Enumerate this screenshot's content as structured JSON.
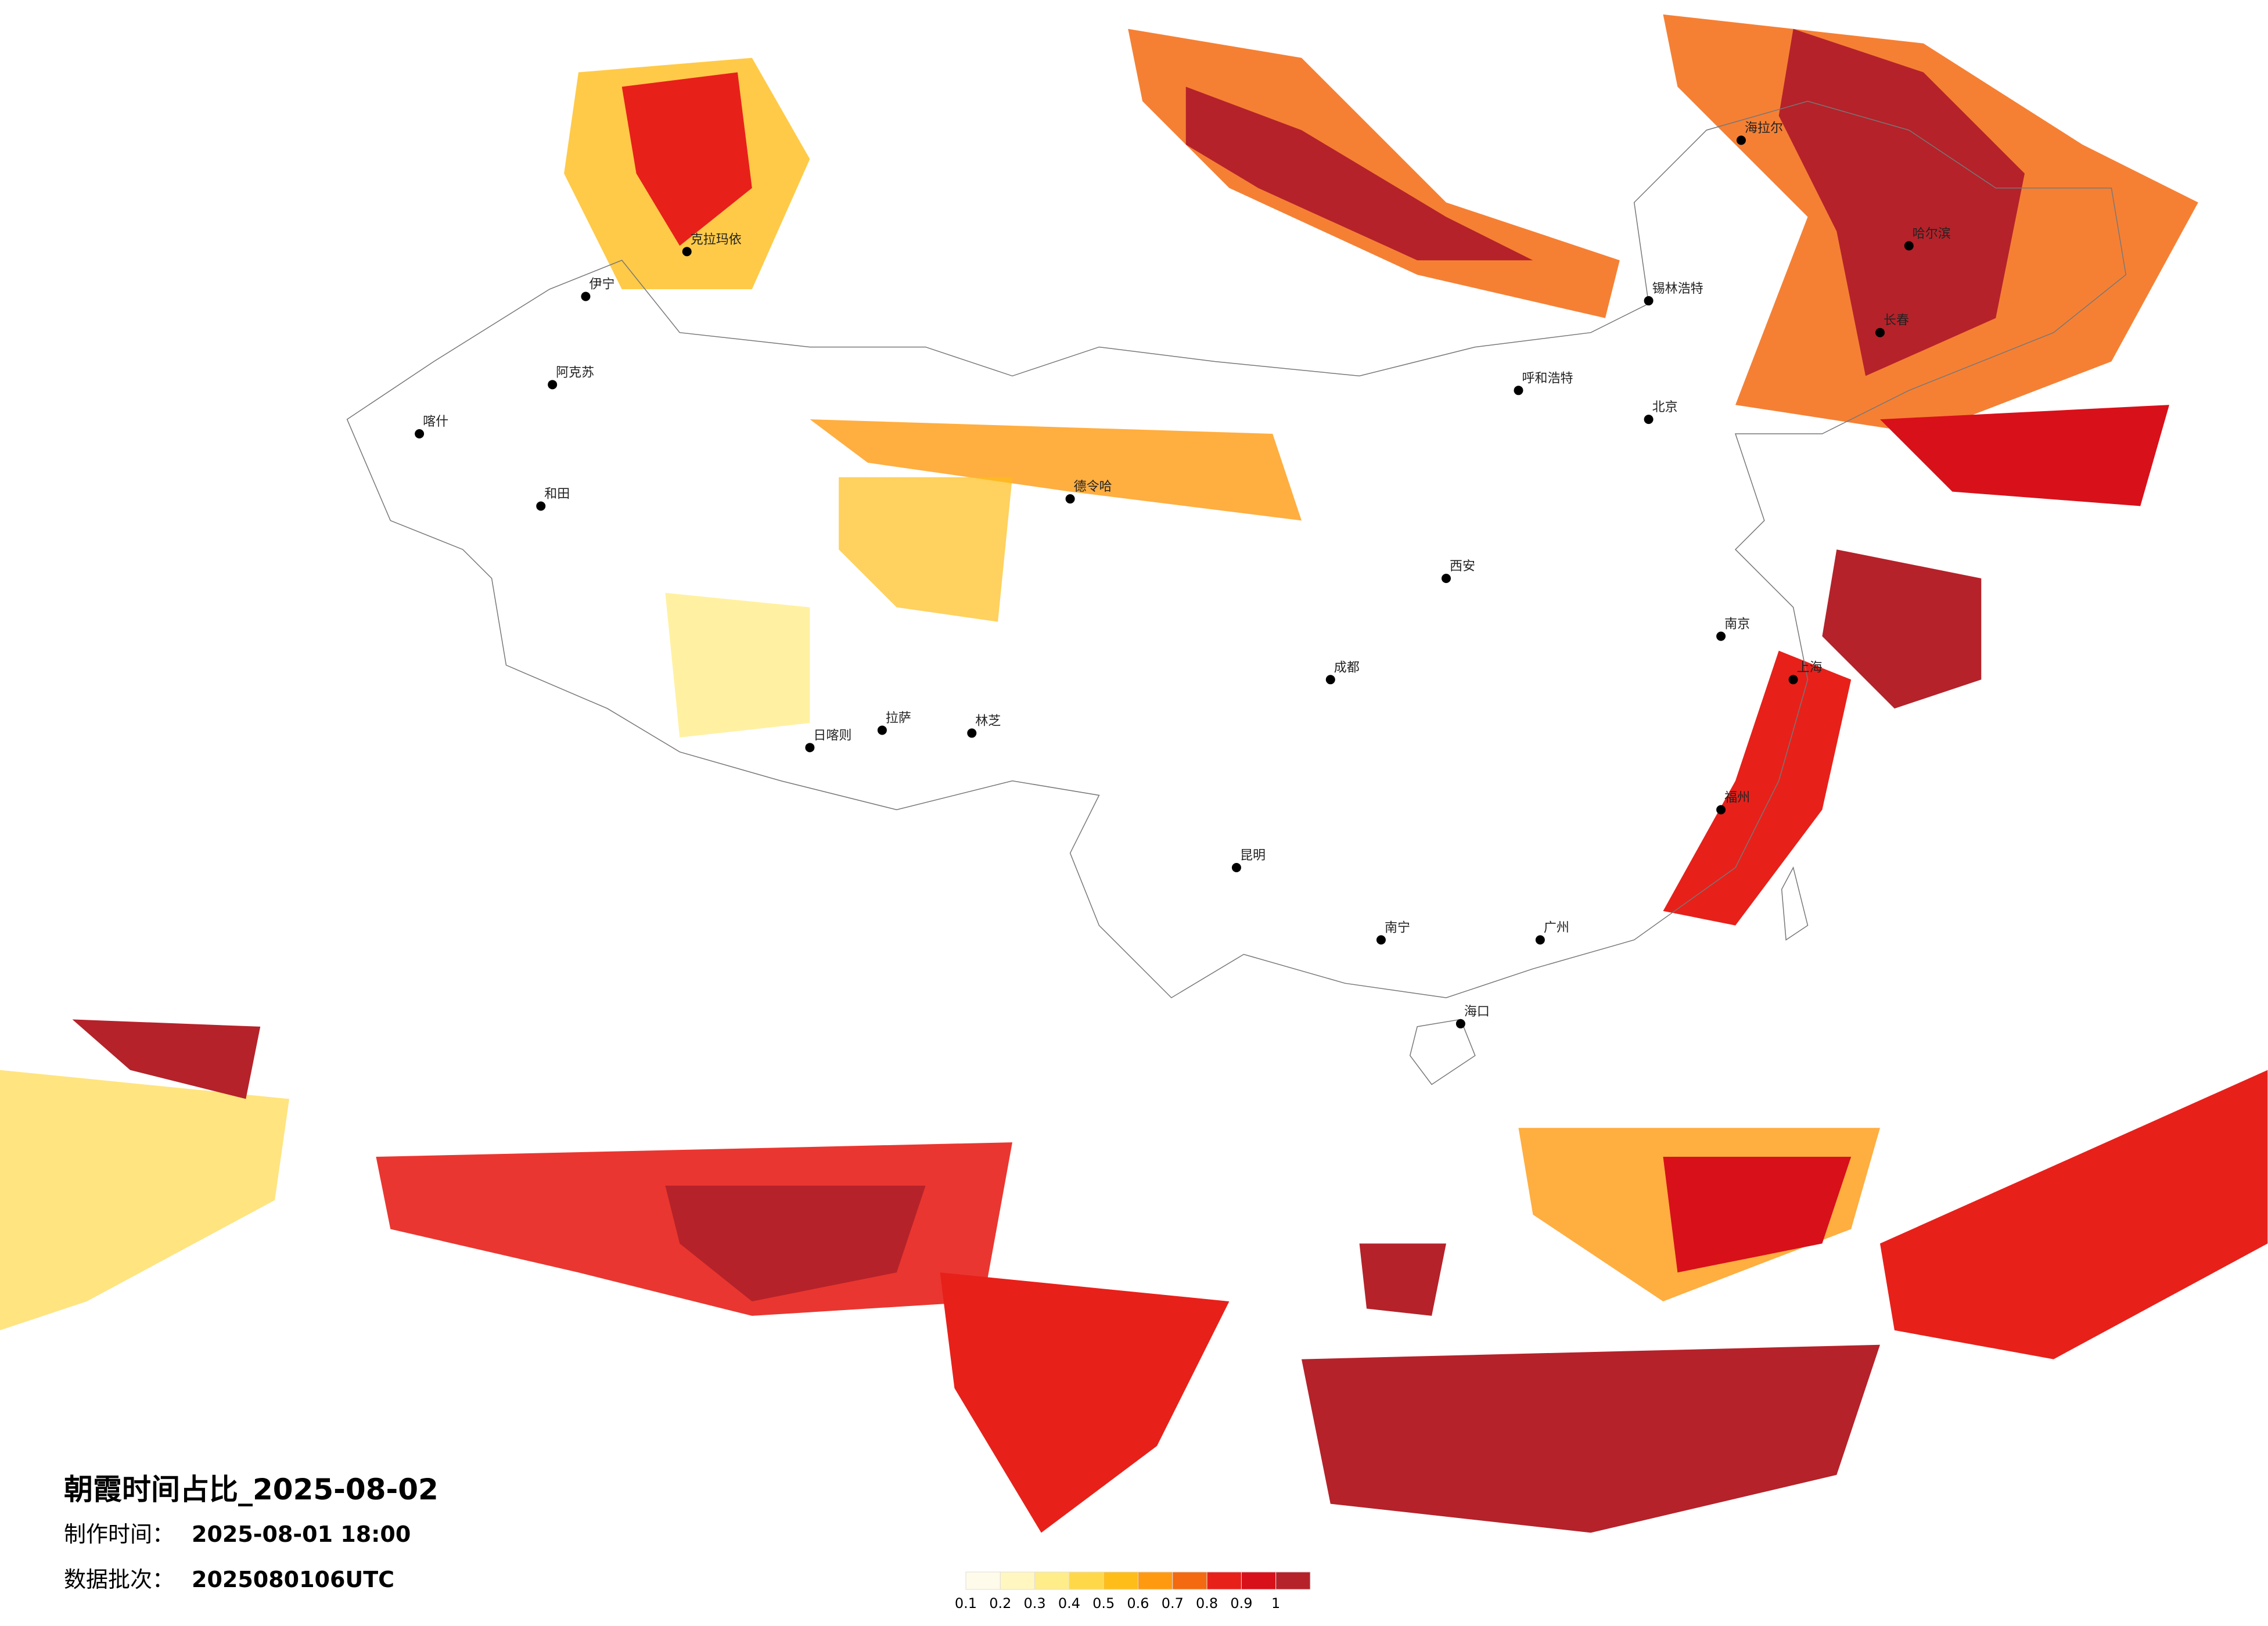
{
  "header": {
    "title": "朝霞时间占比_2025-08-02",
    "made_label": "制作时间：",
    "made_time": "2025-08-01 18:00",
    "batch_label": "数据批次：",
    "batch": "2025080106UTC"
  },
  "legend": {
    "colors": [
      "#fffbea",
      "#fff6c0",
      "#ffed8a",
      "#ffd84a",
      "#ffbd1a",
      "#ff9a10",
      "#f36a10",
      "#e8201a",
      "#d8101a",
      "#b5222a"
    ],
    "labels": [
      0.1,
      0.2,
      0.3,
      0.4,
      0.5,
      0.6,
      0.7,
      0.8,
      0.9,
      1
    ]
  },
  "cities": [
    "海拉尔",
    "锡林浩特",
    "呼和浩特",
    "北京",
    "伊宁",
    "克拉玛依",
    "阿克苏",
    "喀什",
    "和田",
    "日喀则",
    "拉萨",
    "林芝",
    "德令哈",
    "成都",
    "昆明",
    "南宁",
    "海口",
    "广州",
    "福州",
    "上海",
    "南京",
    "西安",
    "长春",
    "哈尔滨"
  ]
}
